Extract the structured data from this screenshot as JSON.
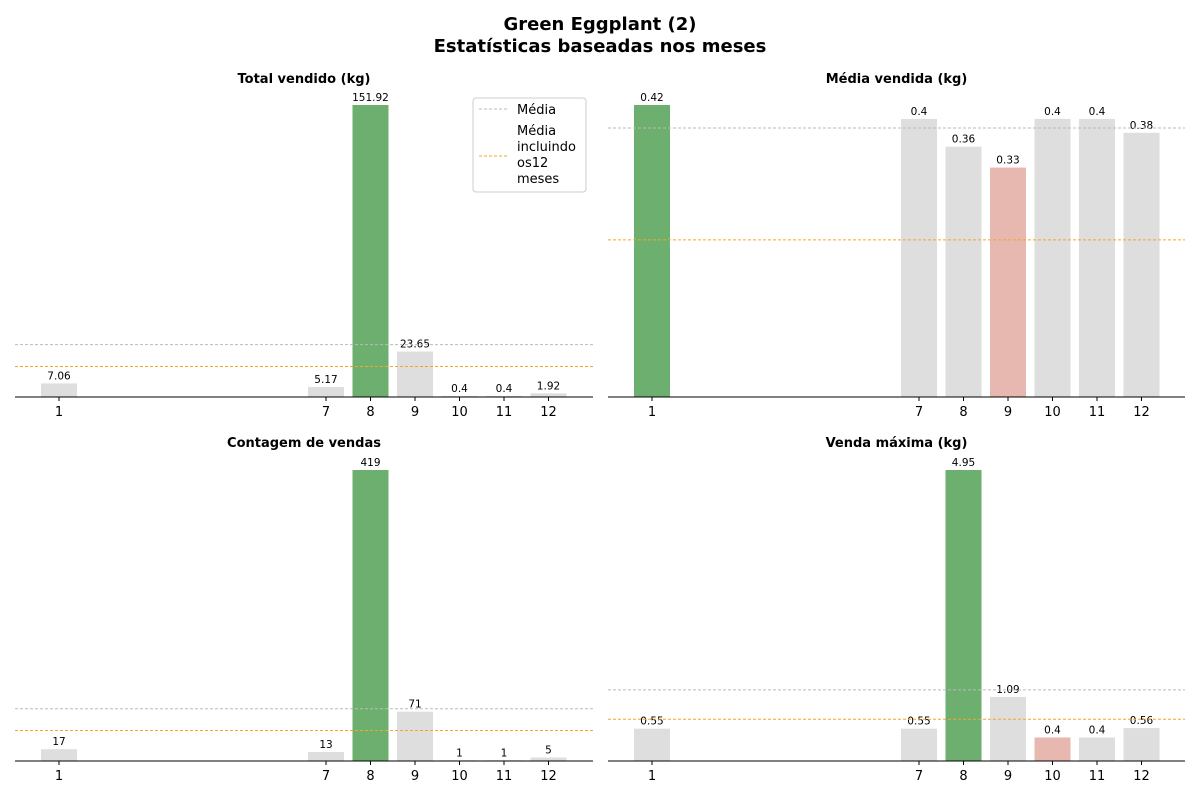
{
  "figure": {
    "title": "Green Eggplant (2)",
    "subtitle": "Estatísticas baseadas nos meses"
  },
  "legend": {
    "placement": "top-right of first panel",
    "items": [
      {
        "label": "Média",
        "color": "#bbbbbb",
        "style": "dashed"
      },
      {
        "label": "Média incluindo os12 meses",
        "label_lines": [
          "Média",
          "incluindo",
          "os12",
          "meses"
        ],
        "color": "#f5a623",
        "style": "dashed"
      }
    ]
  },
  "colors": {
    "max_bar": "#6daf6f",
    "min_bar": "#e6b8b0",
    "normal_bar": "#dedede",
    "mean_line": "#bbbbbb",
    "mean12_line": "#f5a623"
  },
  "chart_data": [
    {
      "type": "bar",
      "title": "Total vendido (kg)",
      "categories": [
        "1",
        "7",
        "8",
        "9",
        "10",
        "11",
        "12"
      ],
      "values": [
        7.06,
        5.17,
        151.92,
        23.65,
        0.4,
        0.4,
        1.92
      ],
      "labels": [
        "7.06",
        "5.17",
        "151.92",
        "23.65",
        "0.4",
        "0.4",
        "1.92"
      ],
      "highlight": [
        "normal",
        "normal",
        "max",
        "normal",
        "min",
        "min",
        "normal"
      ],
      "mean": 27.22,
      "mean_12_months": 15.88,
      "ylim": [
        0,
        151.92
      ],
      "grid": false,
      "legend": true
    },
    {
      "type": "bar",
      "title": "Média vendida (kg)",
      "categories": [
        "1",
        "7",
        "8",
        "9",
        "10",
        "11",
        "12"
      ],
      "values": [
        0.42,
        0.4,
        0.36,
        0.33,
        0.4,
        0.4,
        0.38
      ],
      "labels": [
        "0.42",
        "0.4",
        "0.36",
        "0.33",
        "0.4",
        "0.4",
        "0.38"
      ],
      "highlight": [
        "max",
        "normal",
        "normal",
        "min",
        "normal",
        "normal",
        "normal"
      ],
      "mean": 0.387,
      "mean_12_months": 0.226,
      "ylim": [
        0,
        0.42
      ],
      "grid": false,
      "legend": false
    },
    {
      "type": "bar",
      "title": "Contagem de vendas",
      "categories": [
        "1",
        "7",
        "8",
        "9",
        "10",
        "11",
        "12"
      ],
      "values": [
        17,
        13,
        419,
        71,
        1,
        1,
        5
      ],
      "labels": [
        "17",
        "13",
        "419",
        "71",
        "1",
        "1",
        "5"
      ],
      "highlight": [
        "normal",
        "normal",
        "max",
        "normal",
        "normal",
        "normal",
        "normal"
      ],
      "mean": 75.3,
      "mean_12_months": 43.9,
      "ylim": [
        0,
        419
      ],
      "grid": false,
      "legend": false
    },
    {
      "type": "bar",
      "title": "Venda máxima (kg)",
      "categories": [
        "1",
        "7",
        "8",
        "9",
        "10",
        "11",
        "12"
      ],
      "values": [
        0.55,
        0.55,
        4.95,
        1.09,
        0.4,
        0.4,
        0.56
      ],
      "labels": [
        "0.55",
        "0.55",
        "4.95",
        "1.09",
        "0.4",
        "0.4",
        "0.56"
      ],
      "highlight": [
        "normal",
        "normal",
        "max",
        "normal",
        "min",
        "normal",
        "normal"
      ],
      "mean": 1.21,
      "mean_12_months": 0.71,
      "ylim": [
        0,
        4.95
      ],
      "grid": false,
      "legend": false
    }
  ]
}
